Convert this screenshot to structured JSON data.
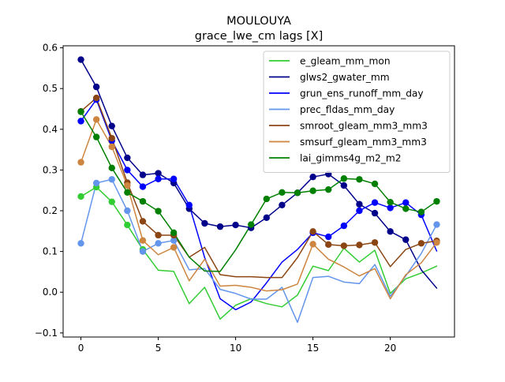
{
  "chart_data": {
    "type": "line",
    "title": "MOULOUYA",
    "subtitle": "grace_lwe_cm lags [X]",
    "xlabel": "",
    "ylabel": "",
    "xlim": [
      -1.15,
      24.15
    ],
    "ylim": [
      -0.11,
      0.605
    ],
    "x_ticks": [
      0,
      5,
      10,
      15,
      20
    ],
    "y_ticks": [
      -0.1,
      0.0,
      0.1,
      0.2,
      0.3,
      0.4,
      0.5,
      0.6
    ],
    "grid": false,
    "legend_position": "upper right",
    "x": [
      0,
      1,
      2,
      3,
      4,
      5,
      6,
      7,
      8,
      9,
      10,
      11,
      12,
      13,
      14,
      15,
      16,
      17,
      18,
      19,
      20,
      21,
      22,
      23
    ],
    "series": [
      {
        "name": "e_gleam_mm_mon",
        "color": "#32cd32",
        "values": [
          0.235,
          0.258,
          0.222,
          0.165,
          0.105,
          0.054,
          0.051,
          -0.028,
          0.012,
          -0.066,
          -0.032,
          -0.016,
          -0.028,
          -0.036,
          -0.007,
          0.064,
          0.053,
          0.108,
          0.074,
          0.103,
          -0.003,
          0.033,
          0.047,
          0.064
        ],
        "markers": [
          0,
          1,
          2,
          3,
          4
        ]
      },
      {
        "name": "glws2_gwater_mm",
        "color": "#00008b",
        "values": [
          0.571,
          0.504,
          0.408,
          0.33,
          0.288,
          0.292,
          0.268,
          0.205,
          0.169,
          0.161,
          0.165,
          0.158,
          0.183,
          0.214,
          0.244,
          0.283,
          0.29,
          0.262,
          0.216,
          0.194,
          0.149,
          0.129,
          0.055,
          0.01
        ],
        "markers": [
          0,
          1,
          2,
          3,
          4,
          5,
          6,
          7,
          8,
          9,
          10,
          11,
          12,
          13,
          14,
          15,
          16,
          17,
          18,
          19,
          20,
          21
        ]
      },
      {
        "name": "grun_ens_runoff_mm_day",
        "color": "#0000ff",
        "values": [
          0.42,
          0.473,
          0.372,
          0.3,
          0.259,
          0.278,
          0.278,
          0.214,
          0.085,
          -0.016,
          -0.043,
          -0.024,
          0.023,
          0.074,
          0.105,
          0.146,
          0.136,
          0.163,
          0.2,
          0.22,
          0.207,
          0.22,
          0.19,
          0.101
        ],
        "markers": [
          0,
          1,
          2,
          3,
          4,
          5,
          6,
          7,
          15,
          16,
          17,
          18,
          19,
          20,
          21,
          22
        ]
      },
      {
        "name": "prec_fldas_mm_day",
        "color": "#6495ed",
        "values": [
          0.12,
          0.268,
          0.277,
          0.2,
          0.1,
          0.12,
          0.127,
          0.055,
          0.058,
          0.007,
          -0.003,
          -0.017,
          -0.017,
          0.012,
          -0.074,
          0.036,
          0.039,
          0.025,
          0.021,
          0.068,
          -0.01,
          0.04,
          0.095,
          0.166
        ],
        "markers": [
          0,
          1,
          2,
          3,
          4,
          5,
          6,
          23
        ]
      },
      {
        "name": "smroot_gleam_mm3_mm3",
        "color": "#8b4513",
        "values": [
          0.444,
          0.477,
          0.378,
          0.269,
          0.174,
          0.14,
          0.14,
          0.086,
          0.11,
          0.043,
          0.038,
          0.038,
          0.036,
          0.036,
          0.085,
          0.149,
          0.117,
          0.114,
          0.116,
          0.122,
          0.063,
          0.105,
          0.12,
          0.126
        ],
        "markers": [
          0,
          1,
          2,
          3,
          4,
          5,
          6,
          15,
          16,
          17,
          18,
          19,
          22,
          23
        ]
      },
      {
        "name": "smsurf_gleam_mm3_mm3",
        "color": "#cd853f",
        "values": [
          0.319,
          0.424,
          0.357,
          0.262,
          0.127,
          0.092,
          0.11,
          0.028,
          0.081,
          0.015,
          0.017,
          0.012,
          0.003,
          0.006,
          0.02,
          0.118,
          0.081,
          0.062,
          0.04,
          0.058,
          -0.016,
          0.043,
          0.072,
          0.122
        ],
        "markers": [
          0,
          1,
          2,
          3,
          4,
          6,
          15,
          23
        ]
      },
      {
        "name": "lai_gimms4g_m2_m2",
        "color": "#008000",
        "values": [
          0.443,
          0.381,
          0.305,
          0.245,
          0.223,
          0.199,
          0.146,
          0.086,
          0.052,
          0.051,
          0.104,
          0.166,
          0.229,
          0.245,
          0.244,
          0.249,
          0.252,
          0.279,
          0.277,
          0.266,
          0.221,
          0.205,
          0.197,
          0.223
        ],
        "markers": [
          0,
          1,
          2,
          3,
          4,
          5,
          6,
          11,
          12,
          13,
          14,
          15,
          16,
          17,
          18,
          19,
          20,
          21,
          22,
          23
        ]
      }
    ]
  }
}
